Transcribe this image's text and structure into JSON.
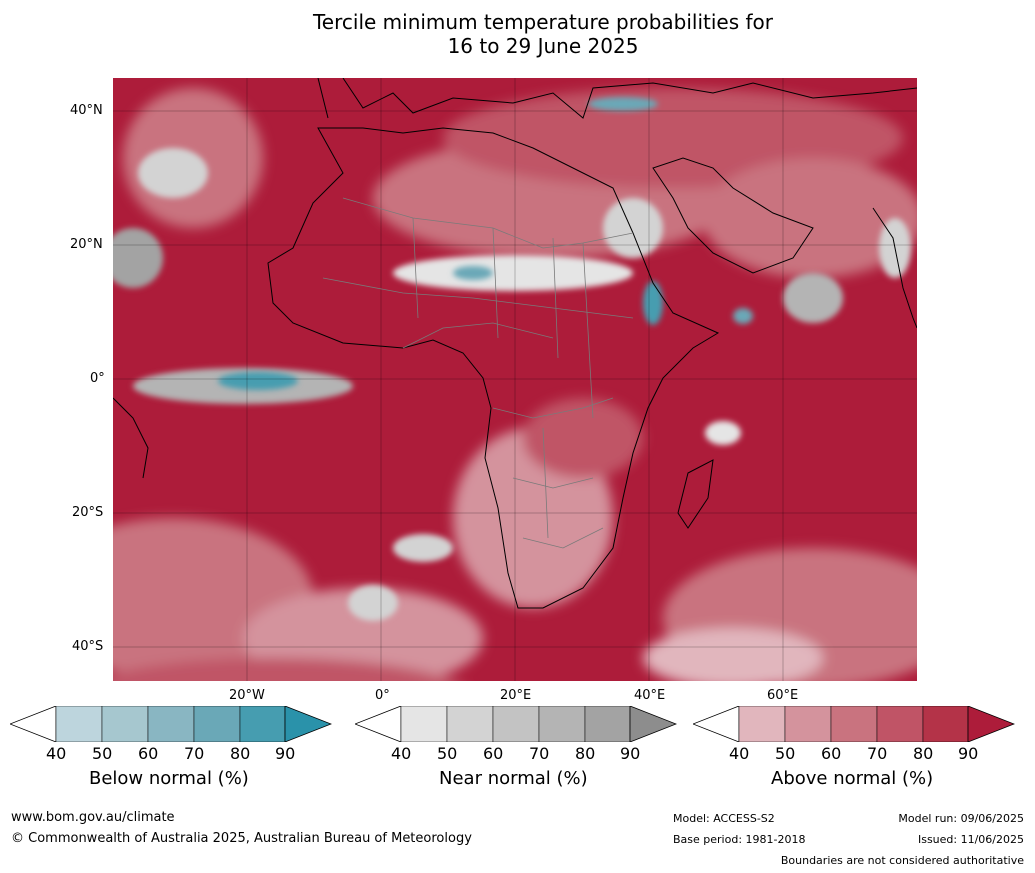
{
  "title_line1": "Tercile minimum temperature probabilities for",
  "title_line2": "16 to 29 June 2025",
  "lat_labels": [
    "40°N",
    "20°N",
    "0°",
    "20°S",
    "40°S"
  ],
  "lon_labels": [
    "20°W",
    "0°",
    "20°E",
    "40°E",
    "60°E"
  ],
  "colorbars": [
    {
      "label": "Below normal (%)",
      "ticks": [
        "40",
        "50",
        "60",
        "70",
        "80",
        "90"
      ],
      "colors": [
        "#bdd5dd",
        "#a6c7cf",
        "#89b6c2",
        "#6aa8b7",
        "#469db0",
        "#2a92aa"
      ]
    },
    {
      "label": "Near normal (%)",
      "ticks": [
        "40",
        "50",
        "60",
        "70",
        "80",
        "90"
      ],
      "colors": [
        "#e5e5e5",
        "#d3d3d3",
        "#c3c3c3",
        "#b4b4b4",
        "#a3a3a3",
        "#8d8d8d"
      ]
    },
    {
      "label": "Above normal (%)",
      "ticks": [
        "40",
        "50",
        "60",
        "70",
        "80",
        "90"
      ],
      "colors": [
        "#e1b6bd",
        "#d4939d",
        "#c9737f",
        "#c05466",
        "#b43348",
        "#ad1c3a"
      ]
    }
  ],
  "footer": {
    "website": "www.bom.gov.au/climate",
    "copyright": "© Commonwealth of Australia 2025, Australian Bureau of Meteorology",
    "model": "Model: ACCESS-S2",
    "base_period": "Base period: 1981-2018",
    "model_run": "Model run: 09/06/2025",
    "issued": "Issued: 11/06/2025",
    "disclaimer": "Boundaries are not considered authoritative"
  }
}
